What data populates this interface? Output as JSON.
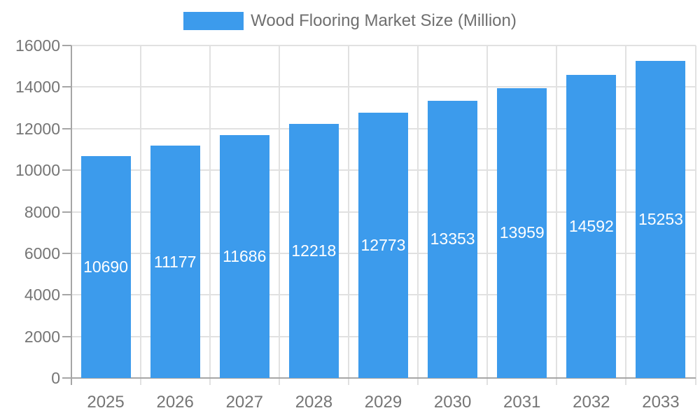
{
  "legend": {
    "label": "Wood Flooring Market Size (Million)"
  },
  "colors": {
    "bar": "#3C9BEC",
    "bar_label": "#FFFFFF",
    "axis_text": "#757575",
    "legend_text": "#6F6F6F",
    "gridline": "#E1E1E1",
    "axis_line": "#A6A6A6"
  },
  "chart_data": {
    "type": "bar",
    "title": "Wood Flooring Market Size (Million)",
    "categories": [
      "2025",
      "2026",
      "2027",
      "2028",
      "2029",
      "2030",
      "2031",
      "2032",
      "2033"
    ],
    "values": [
      10690,
      11177,
      11686,
      12218,
      12773,
      13353,
      13959,
      14592,
      15253
    ],
    "series": [
      {
        "name": "Wood Flooring Market Size (Million)",
        "values": [
          10690,
          11177,
          11686,
          12218,
          12773,
          13353,
          13959,
          14592,
          15253
        ]
      }
    ],
    "xlabel": "",
    "ylabel": "",
    "ylim": [
      0,
      16000
    ],
    "ytick_step": 2000,
    "grid": true,
    "legend_position": "top",
    "bar_labels_inside": true
  }
}
